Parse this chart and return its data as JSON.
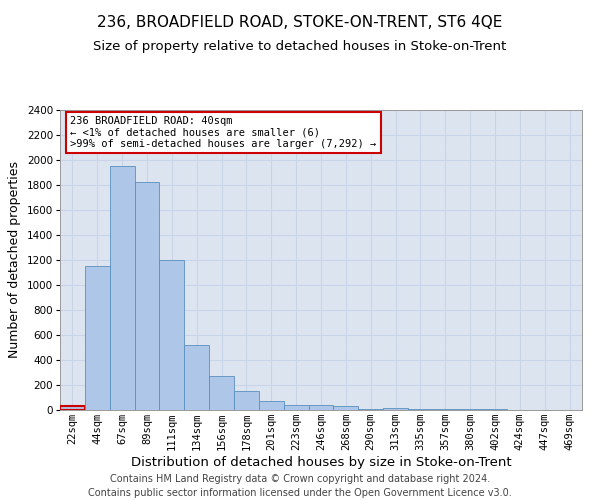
{
  "title": "236, BROADFIELD ROAD, STOKE-ON-TRENT, ST6 4QE",
  "subtitle": "Size of property relative to detached houses in Stoke-on-Trent",
  "xlabel": "Distribution of detached houses by size in Stoke-on-Trent",
  "ylabel": "Number of detached properties",
  "categories": [
    "22sqm",
    "44sqm",
    "67sqm",
    "89sqm",
    "111sqm",
    "134sqm",
    "156sqm",
    "178sqm",
    "201sqm",
    "223sqm",
    "246sqm",
    "268sqm",
    "290sqm",
    "313sqm",
    "335sqm",
    "357sqm",
    "380sqm",
    "402sqm",
    "424sqm",
    "447sqm",
    "469sqm"
  ],
  "values": [
    30,
    1150,
    1950,
    1825,
    1200,
    520,
    270,
    150,
    75,
    40,
    40,
    30,
    10,
    15,
    10,
    5,
    5,
    5,
    2,
    2,
    2
  ],
  "bar_color": "#aec6e8",
  "bar_edge_color": "#5a8fc0",
  "highlight_bar_index": 0,
  "highlight_edge_color": "#cc0000",
  "annotation_text": "236 BROADFIELD ROAD: 40sqm\n← <1% of detached houses are smaller (6)\n>99% of semi-detached houses are larger (7,292) →",
  "annotation_box_color": "#ffffff",
  "annotation_box_edge_color": "#cc0000",
  "ylim": [
    0,
    2400
  ],
  "yticks": [
    0,
    200,
    400,
    600,
    800,
    1000,
    1200,
    1400,
    1600,
    1800,
    2000,
    2200,
    2400
  ],
  "grid_color": "#c8d4e8",
  "background_color": "#dce4f0",
  "footer_line1": "Contains HM Land Registry data © Crown copyright and database right 2024.",
  "footer_line2": "Contains public sector information licensed under the Open Government Licence v3.0.",
  "title_fontsize": 11,
  "subtitle_fontsize": 9.5,
  "xlabel_fontsize": 9.5,
  "ylabel_fontsize": 9,
  "tick_fontsize": 7.5,
  "footer_fontsize": 7
}
